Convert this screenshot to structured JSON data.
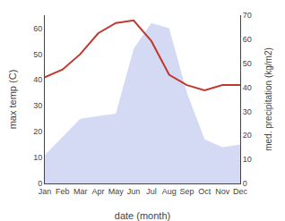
{
  "chart_data": {
    "type": "line",
    "categories": [
      "Jan",
      "Feb",
      "Mar",
      "Apr",
      "May",
      "Jun",
      "Jul",
      "Aug",
      "Sep",
      "Oct",
      "Nov",
      "Dec"
    ],
    "series": [
      {
        "type": "area",
        "color": "#c5cef0",
        "values": [
          11,
          18,
          25,
          26,
          27,
          52,
          62,
          60,
          35,
          17,
          14,
          15
        ]
      },
      {
        "type": "line",
        "color": "#c0392b",
        "values": [
          41,
          44,
          50,
          58,
          62,
          63,
          55,
          42,
          38,
          36,
          38,
          38
        ]
      }
    ],
    "xlabel": "date (month)",
    "ylabel": "max temp (C)",
    "y2label": "med. precipitation (kg/m2)",
    "ylim": [
      0,
      65
    ],
    "yticks": [
      0,
      10,
      20,
      30,
      40,
      50,
      60
    ],
    "y2lim": [
      0,
      70
    ],
    "y2ticks": [
      0,
      10,
      20,
      30,
      40,
      50,
      60,
      70
    ],
    "grid": false
  }
}
